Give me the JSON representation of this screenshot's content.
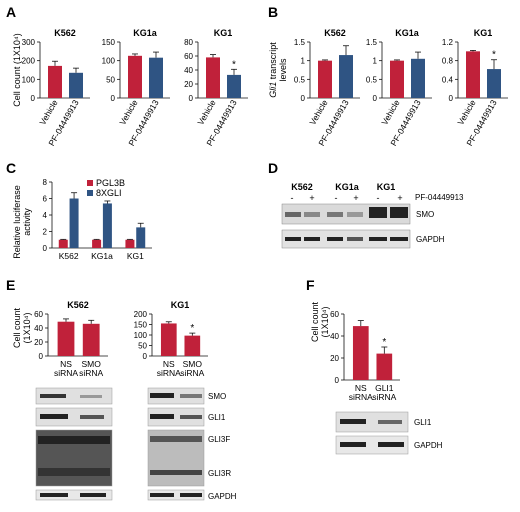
{
  "panels": {
    "A": {
      "letter": "A",
      "ylabel": "Cell count (1X10⁴)",
      "charts": [
        {
          "title": "K562",
          "ylim": [
            0,
            300
          ],
          "yticks": [
            0,
            100,
            200,
            300
          ],
          "values": [
            172,
            135
          ],
          "errors": [
            25,
            25
          ],
          "sig": [
            false,
            false
          ]
        },
        {
          "title": "KG1a",
          "ylim": [
            0,
            150
          ],
          "yticks": [
            0,
            50,
            100,
            150
          ],
          "values": [
            113,
            108
          ],
          "errors": [
            5,
            15
          ],
          "sig": [
            false,
            false
          ]
        },
        {
          "title": "KG1",
          "ylim": [
            0,
            80
          ],
          "yticks": [
            0,
            20,
            40,
            60,
            80
          ],
          "values": [
            58,
            33
          ],
          "errors": [
            4,
            8
          ],
          "sig": [
            false,
            true
          ]
        }
      ],
      "categories": [
        "Vehicle",
        "PF-04449913"
      ]
    },
    "B": {
      "letter": "B",
      "ylabel_italic": "Gli1",
      "ylabel_rest": " transcript",
      "ylabel_line2": "levels",
      "charts": [
        {
          "title": "K562",
          "ylim": [
            0,
            1.5
          ],
          "yticks": [
            "0",
            "0.5",
            "1",
            "1.5"
          ],
          "values": [
            1.0,
            1.15
          ],
          "errors": [
            0.02,
            0.25
          ],
          "sig": [
            false,
            false
          ]
        },
        {
          "title": "KG1a",
          "ylim": [
            0,
            1.5
          ],
          "yticks": [
            "0",
            "0.5",
            "1",
            "1.5"
          ],
          "values": [
            1.0,
            1.05
          ],
          "errors": [
            0.02,
            0.18
          ],
          "sig": [
            false,
            false
          ]
        },
        {
          "title": "KG1",
          "ylim": [
            0,
            1.2
          ],
          "yticks": [
            "0",
            "0.4",
            "0.8",
            "1.2"
          ],
          "values": [
            1.0,
            0.62
          ],
          "errors": [
            0.02,
            0.2
          ],
          "sig": [
            false,
            true
          ]
        }
      ],
      "categories": [
        "Vehicle",
        "PF-04449913"
      ]
    },
    "C": {
      "letter": "C",
      "ylabel": "Relative luciferase",
      "ylabel_line2": "activity",
      "ylim": [
        0,
        8
      ],
      "yticks": [
        0,
        2,
        4,
        6,
        8
      ],
      "categories": [
        "K562",
        "KG1a",
        "KG1"
      ],
      "series": [
        {
          "name": "PGL3B",
          "values": [
            1.0,
            1.0,
            1.0
          ],
          "errors": [
            0.05,
            0.05,
            0.05
          ]
        },
        {
          "name": "8XGLI",
          "values": [
            6.0,
            5.4,
            2.5
          ],
          "errors": [
            0.7,
            0.3,
            0.5
          ]
        }
      ]
    },
    "D": {
      "letter": "D",
      "lanes_groups": [
        "K562",
        "KG1a",
        "KG1"
      ],
      "signs": [
        "-",
        "+",
        "-",
        "+",
        "-",
        "+"
      ],
      "treatment": "PF-04449913",
      "bands": [
        "SMO",
        "GAPDH"
      ]
    },
    "E": {
      "letter": "E",
      "ylabel": "Cell count",
      "ylabel_line2": "(1X10⁴)",
      "charts": [
        {
          "title": "K562",
          "ylim": [
            0,
            60
          ],
          "yticks": [
            0,
            20,
            40,
            60
          ],
          "values": [
            49,
            46
          ],
          "errors": [
            4,
            5
          ],
          "sig": [
            false,
            false
          ]
        },
        {
          "title": "KG1",
          "ylim": [
            0,
            200
          ],
          "yticks": [
            0,
            50,
            100,
            150,
            200
          ],
          "values": [
            155,
            97
          ],
          "errors": [
            8,
            12
          ],
          "sig": [
            false,
            true
          ]
        }
      ],
      "categories": [
        [
          "NS",
          "siRNA"
        ],
        [
          "SMO",
          "siRNA"
        ]
      ],
      "bands": [
        "SMO",
        "GLI1",
        "GLI3F",
        "GLI3R",
        "GAPDH"
      ]
    },
    "F": {
      "letter": "F",
      "ylabel": "Cell count",
      "ylabel_line2": "(1X10⁴)",
      "chart": {
        "ylim": [
          0,
          60
        ],
        "yticks": [
          0,
          20,
          40,
          60
        ],
        "values": [
          49,
          24
        ],
        "errors": [
          5,
          6
        ],
        "sig": [
          false,
          true
        ]
      },
      "categories": [
        [
          "NS",
          "siRNA"
        ],
        [
          "GLI1",
          "siRNA"
        ]
      ],
      "bands": [
        "GLI1",
        "GAPDH"
      ]
    },
    "sig_symbol": "*"
  },
  "colors": {
    "red": "#c0213a",
    "blue": "#2f5483",
    "axis": "#111111",
    "blot_bg": "#d6d6d6",
    "blot_dark": "#2a2a2a"
  }
}
